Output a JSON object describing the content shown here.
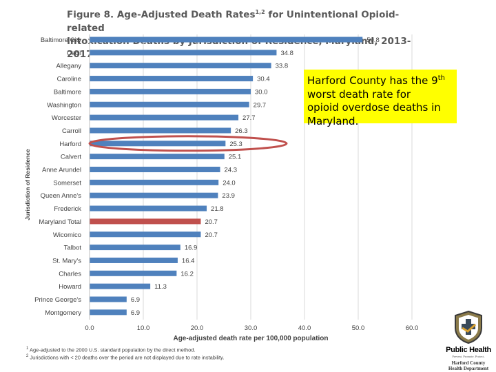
{
  "chart_data": {
    "type": "bar",
    "orientation": "horizontal",
    "title_line1": "Figure 8. Age-Adjusted Death Rates",
    "title_sup": "1,2",
    "title_line1_rest": " for Unintentional Opioid-related",
    "title_line2": "Intoxication Deaths by Jurisdiction of Residence, Maryland, 2013-2017",
    "xlabel": "Age-adjusted death rate per 100,000 population",
    "ylabel": "Jurisdiction of Residence",
    "xlim": [
      0,
      60
    ],
    "xticks": [
      "0.0",
      "10.0",
      "20.0",
      "30.0",
      "40.0",
      "50.0",
      "60.0"
    ],
    "categories": [
      "Baltimore City",
      "Cecil",
      "Allegany",
      "Caroline",
      "Baltimore",
      "Washington",
      "Worcester",
      "Carroll",
      "Harford",
      "Calvert",
      "Anne Arundel",
      "Somerset",
      "Queen Anne's",
      "Frederick",
      "Maryland Total",
      "Wicomico",
      "Talbot",
      "St. Mary's",
      "Charles",
      "Howard",
      "Prince George's",
      "Montgomery"
    ],
    "values": [
      50.8,
      34.8,
      33.8,
      30.4,
      30.0,
      29.7,
      27.7,
      26.3,
      25.3,
      25.1,
      24.3,
      24.0,
      23.9,
      21.8,
      20.7,
      20.7,
      16.9,
      16.4,
      16.2,
      11.3,
      6.9,
      6.9
    ],
    "value_labels": [
      "50.8",
      "34.8",
      "33.8",
      "30.4",
      "30.0",
      "29.7",
      "27.7",
      "26.3",
      "25.3",
      "25.1",
      "24.3",
      "24.0",
      "23.9",
      "21.8",
      "20.7",
      "20.7",
      "16.9",
      "16.4",
      "16.2",
      "11.3",
      "6.9",
      "6.9"
    ],
    "highlight_category": "Maryland Total",
    "bar_color": "#4f81bd",
    "highlight_color": "#c0504d",
    "circled_category": "Harford",
    "circle_color": "#c0504d"
  },
  "footnotes": {
    "note1_sup": "1",
    "note1": " Age-adjusted to the 2000 U.S. standard population by the direct method.",
    "note2_sup": "2",
    "note2": " Jurisdictions with < 20 deaths over the period are not displayed due to rate instability."
  },
  "callout": {
    "text_before": "Harford County has the 9",
    "sup": "th",
    "text_after": " worst death rate for opioid overdose deaths in Maryland.",
    "background": "#ffff00"
  },
  "logo": {
    "title": "Public Health",
    "tagline": "Prevent. Promote. Protect.",
    "dept_line1": "Harford County",
    "dept_line2": "Health Department"
  }
}
